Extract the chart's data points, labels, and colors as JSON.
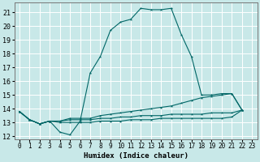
{
  "title": "",
  "xlabel": "Humidex (Indice chaleur)",
  "ylabel": "",
  "xlim": [
    -0.5,
    23.5
  ],
  "ylim": [
    11.8,
    21.7
  ],
  "yticks": [
    12,
    13,
    14,
    15,
    16,
    17,
    18,
    19,
    20,
    21
  ],
  "xticks": [
    0,
    1,
    2,
    3,
    4,
    5,
    6,
    7,
    8,
    9,
    10,
    11,
    12,
    13,
    14,
    15,
    16,
    17,
    18,
    19,
    20,
    21,
    22,
    23
  ],
  "bg_color": "#c8e8e8",
  "line_color": "#006666",
  "grid_color": "#ffffff",
  "lines": [
    [
      0,
      13.8,
      1,
      13.2,
      2,
      12.9,
      3,
      13.1,
      4,
      12.3,
      5,
      12.1,
      6,
      13.1,
      7,
      16.6,
      8,
      17.8,
      9,
      19.7,
      10,
      20.3,
      11,
      20.5,
      12,
      21.3,
      13,
      21.2,
      14,
      21.2,
      15,
      21.3,
      16,
      19.4,
      17,
      17.8,
      18,
      15.0,
      19,
      15.0,
      20,
      15.1,
      21,
      15.1,
      22,
      13.9
    ],
    [
      0,
      13.8,
      1,
      13.2,
      2,
      12.9,
      3,
      13.1,
      4,
      13.1,
      5,
      13.3,
      6,
      13.3,
      7,
      13.3,
      8,
      13.5,
      9,
      13.6,
      10,
      13.7,
      11,
      13.8,
      12,
      13.9,
      13,
      14.0,
      14,
      14.1,
      15,
      14.2,
      16,
      14.4,
      17,
      14.6,
      18,
      14.8,
      19,
      14.9,
      20,
      15.0,
      21,
      15.1,
      22,
      13.9
    ],
    [
      0,
      13.8,
      1,
      13.2,
      2,
      12.9,
      3,
      13.1,
      4,
      13.1,
      5,
      13.2,
      6,
      13.2,
      7,
      13.2,
      8,
      13.3,
      9,
      13.3,
      10,
      13.4,
      11,
      13.4,
      12,
      13.5,
      13,
      13.5,
      14,
      13.5,
      15,
      13.6,
      16,
      13.6,
      17,
      13.6,
      18,
      13.6,
      19,
      13.7,
      20,
      13.7,
      21,
      13.7,
      22,
      13.9
    ],
    [
      0,
      13.8,
      1,
      13.2,
      2,
      12.9,
      3,
      13.1,
      4,
      13.0,
      5,
      13.0,
      6,
      13.0,
      7,
      13.0,
      8,
      13.1,
      9,
      13.1,
      10,
      13.1,
      11,
      13.2,
      12,
      13.2,
      13,
      13.2,
      14,
      13.3,
      15,
      13.3,
      16,
      13.3,
      17,
      13.3,
      18,
      13.3,
      19,
      13.3,
      20,
      13.3,
      21,
      13.4,
      22,
      13.9
    ]
  ],
  "xlabel_fontsize": 6.5,
  "tick_fontsize": 5.5,
  "linewidth": 0.8,
  "markersize": 2.5
}
